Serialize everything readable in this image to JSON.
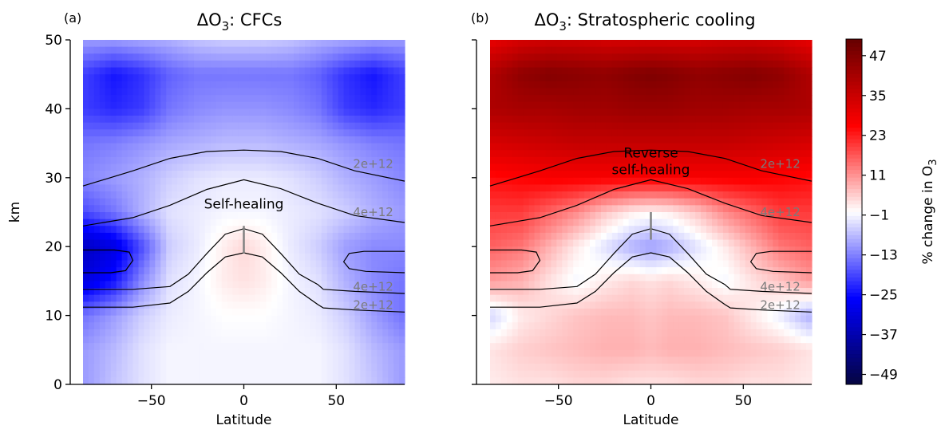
{
  "chart_data": [
    {
      "type": "heatmap",
      "panel_letter": "(a)",
      "title_prefix": "ΔO",
      "title_subscript": "3",
      "title_suffix": ": CFCs",
      "xlabel": "Latitude",
      "ylabel": "km",
      "xlim": [
        -87,
        87
      ],
      "ylim": [
        0,
        50
      ],
      "xticks": [
        -50,
        0,
        50
      ],
      "yticks": [
        0,
        10,
        20,
        30,
        40,
        50
      ],
      "x": [
        -85,
        -70,
        -55,
        -40,
        -25,
        -10,
        0,
        10,
        25,
        40,
        55,
        70,
        85
      ],
      "y": [
        0,
        5,
        10,
        15,
        20,
        25,
        30,
        35,
        40,
        45,
        50
      ],
      "z": [
        [
          -10,
          -6,
          -3,
          -1,
          -1,
          -1,
          -1,
          -1,
          -1,
          -1,
          -3,
          -6,
          -10
        ],
        [
          -10,
          -7,
          -3,
          -1,
          -1,
          -1,
          -1,
          -1,
          -1,
          -1,
          -3,
          -7,
          -10
        ],
        [
          -14,
          -10,
          -5,
          -2,
          -1,
          0,
          0,
          0,
          -1,
          -2,
          -5,
          -10,
          -14
        ],
        [
          -30,
          -24,
          -12,
          -3,
          -1,
          2,
          3,
          2,
          -1,
          -3,
          -8,
          -12,
          -14
        ],
        [
          -34,
          -30,
          -18,
          -5,
          -2,
          2,
          4,
          2,
          -2,
          -5,
          -10,
          -12,
          -12
        ],
        [
          -18,
          -14,
          -8,
          -3,
          -2,
          -1,
          -1,
          -1,
          -2,
          -3,
          -5,
          -8,
          -10
        ],
        [
          -12,
          -10,
          -8,
          -5,
          -3,
          -2,
          -2,
          -2,
          -3,
          -5,
          -8,
          -10,
          -12
        ],
        [
          -14,
          -13,
          -11,
          -9,
          -8,
          -7,
          -7,
          -7,
          -8,
          -9,
          -11,
          -13,
          -14
        ],
        [
          -20,
          -22,
          -20,
          -14,
          -12,
          -11,
          -11,
          -11,
          -12,
          -14,
          -20,
          -22,
          -20
        ],
        [
          -20,
          -24,
          -21,
          -16,
          -14,
          -14,
          -14,
          -14,
          -14,
          -16,
          -21,
          -24,
          -20
        ],
        [
          -10,
          -10,
          -9,
          -8,
          -6,
          -5,
          -5,
          -5,
          -6,
          -8,
          -9,
          -10,
          -10
        ]
      ],
      "contour_labels": [
        {
          "text": "2e+12",
          "lat": 70,
          "km": 32
        },
        {
          "text": "4e+12",
          "lat": 70,
          "km": 25
        },
        {
          "text": "4e+12",
          "lat": 70,
          "km": 14.2
        },
        {
          "text": "2e+12",
          "lat": 70,
          "km": 11.5
        }
      ],
      "annotation": {
        "lines": [
          "Self-healing"
        ],
        "lat": 0,
        "km": 25.5,
        "marker_km": [
          19,
          23
        ]
      }
    },
    {
      "type": "heatmap",
      "panel_letter": "(b)",
      "title_prefix": "ΔO",
      "title_subscript": "3",
      "title_suffix": ": Stratospheric cooling",
      "xlabel": "Latitude",
      "ylabel": "",
      "xlim": [
        -87,
        87
      ],
      "ylim": [
        0,
        50
      ],
      "xticks": [
        -50,
        0,
        50
      ],
      "yticks": [
        0,
        10,
        20,
        30,
        40,
        50
      ],
      "x": [
        -85,
        -70,
        -55,
        -40,
        -25,
        -10,
        0,
        10,
        25,
        40,
        55,
        70,
        85
      ],
      "y": [
        0,
        5,
        10,
        15,
        20,
        25,
        30,
        35,
        40,
        45,
        50
      ],
      "z": [
        [
          2,
          3,
          3,
          4,
          4,
          3,
          3,
          3,
          4,
          4,
          3,
          3,
          2
        ],
        [
          3,
          5,
          6,
          7,
          8,
          8,
          7,
          8,
          8,
          7,
          6,
          5,
          3
        ],
        [
          -4,
          2,
          4,
          6,
          7,
          7,
          6,
          7,
          7,
          6,
          2,
          -2,
          -8
        ],
        [
          10,
          8,
          3,
          -1,
          2,
          4,
          3,
          4,
          2,
          -1,
          3,
          6,
          10
        ],
        [
          16,
          14,
          8,
          2,
          -3,
          -8,
          -10,
          -8,
          -3,
          2,
          8,
          14,
          16
        ],
        [
          20,
          20,
          16,
          12,
          6,
          2,
          1,
          2,
          6,
          12,
          16,
          20,
          20
        ],
        [
          25,
          26,
          27,
          27,
          27,
          27,
          27,
          27,
          27,
          27,
          27,
          26,
          25
        ],
        [
          33,
          34,
          35,
          36,
          36,
          36,
          36,
          36,
          36,
          36,
          35,
          34,
          33
        ],
        [
          40,
          41,
          41,
          42,
          42,
          43,
          43,
          43,
          42,
          42,
          41,
          41,
          40
        ],
        [
          40,
          45,
          47,
          46,
          45,
          47,
          48,
          47,
          45,
          46,
          47,
          45,
          40
        ],
        [
          30,
          33,
          34,
          34,
          33,
          33,
          33,
          33,
          33,
          34,
          34,
          33,
          30
        ]
      ],
      "contour_labels": [
        {
          "text": "2e+12",
          "lat": 70,
          "km": 32
        },
        {
          "text": "4e+12",
          "lat": 70,
          "km": 25
        },
        {
          "text": "4e+12",
          "lat": 70,
          "km": 14.2
        },
        {
          "text": "2e+12",
          "lat": 70,
          "km": 11.5
        }
      ],
      "annotation": {
        "lines": [
          "Reverse",
          "self-healing"
        ],
        "lat": 0,
        "km": 30.5,
        "marker_km": [
          21,
          25
        ]
      }
    }
  ],
  "contours": [
    {
      "name": "2e+12 upper",
      "lat": [
        -87,
        -60,
        -40,
        -20,
        0,
        20,
        40,
        60,
        87
      ],
      "km": [
        28.8,
        31,
        32.8,
        33.8,
        34,
        33.8,
        32.8,
        31,
        29.5
      ]
    },
    {
      "name": "4e+12 upper",
      "lat": [
        -87,
        -60,
        -40,
        -20,
        0,
        20,
        40,
        60,
        87
      ],
      "km": [
        23,
        24.2,
        26,
        28.3,
        29.7,
        28.4,
        26.3,
        24.5,
        23.5
      ]
    },
    {
      "name": "4e+12 lower",
      "lat": [
        -87,
        -60,
        -40,
        -30,
        -20,
        -10,
        0,
        10,
        20,
        30,
        40,
        43,
        60,
        87
      ],
      "km": [
        13.8,
        13.8,
        14.2,
        16,
        19,
        21.8,
        22.6,
        21.8,
        19,
        16,
        14.5,
        13.8,
        13.5,
        13.2
      ]
    },
    {
      "name": "2e+12 lower",
      "lat": [
        -87,
        -60,
        -40,
        -30,
        -20,
        -10,
        0,
        10,
        20,
        30,
        40,
        43,
        60,
        87
      ],
      "km": [
        11.2,
        11.2,
        11.8,
        13.5,
        16.2,
        18.5,
        19.1,
        18.5,
        16.2,
        13.5,
        11.6,
        11.1,
        10.8,
        10.5
      ]
    },
    {
      "name": "polar loop west",
      "lat": [
        -87,
        -70,
        -62,
        -60,
        -64,
        -72,
        -87
      ],
      "km": [
        19.5,
        19.5,
        19.2,
        18,
        16.5,
        16.2,
        16.2
      ]
    },
    {
      "name": "polar loop east",
      "lat": [
        87,
        65,
        57,
        54,
        57,
        66,
        87
      ],
      "km": [
        19.3,
        19.3,
        19,
        17.8,
        16.8,
        16.4,
        16.2
      ]
    }
  ],
  "colorbar": {
    "label_prefix": "% change in O",
    "label_subscript": "3",
    "min": -52,
    "max": 52,
    "ticks": [
      47,
      35,
      23,
      11,
      -1,
      -13,
      -25,
      -37,
      -49
    ],
    "tick_labels": [
      "47",
      "35",
      "23",
      "11",
      "−1",
      "−13",
      "−25",
      "−37",
      "−49"
    ],
    "colormap": [
      "#050540",
      "#0000ff",
      "#ffffff",
      "#ff0000",
      "#660000"
    ]
  }
}
